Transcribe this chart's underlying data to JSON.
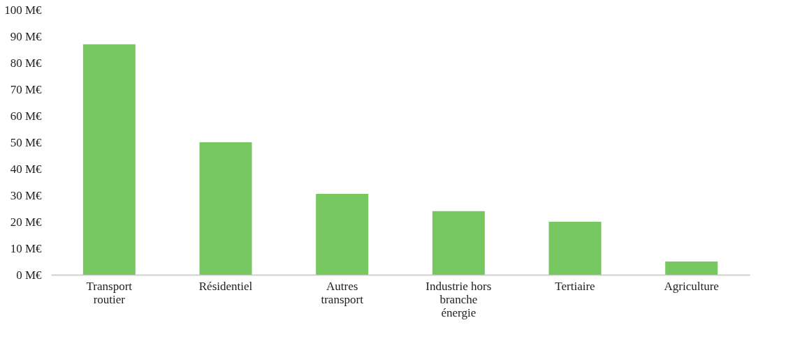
{
  "chart_data": {
    "type": "bar",
    "categories": [
      "Transport routier",
      "Résidentiel",
      "Autres transport",
      "Industrie hors branche énergie",
      "Tertiaire",
      "Agriculture"
    ],
    "values": [
      87,
      50,
      30.5,
      24,
      20,
      5
    ],
    "color": "#77c860",
    "ylim": [
      0,
      100
    ],
    "yticks": [
      {
        "value": 0,
        "label": "0 M€"
      },
      {
        "value": 10,
        "label": "10 M€"
      },
      {
        "value": 20,
        "label": "20 M€"
      },
      {
        "value": 30,
        "label": "30 M€"
      },
      {
        "value": 40,
        "label": "40 M€"
      },
      {
        "value": 50,
        "label": "50 M€"
      },
      {
        "value": 60,
        "label": "60 M€"
      },
      {
        "value": 70,
        "label": "70 M€"
      },
      {
        "value": 80,
        "label": "80 M€"
      },
      {
        "value": 90,
        "label": "90 M€"
      },
      {
        "value": 100,
        "label": "100 M€"
      }
    ],
    "grid": false
  }
}
